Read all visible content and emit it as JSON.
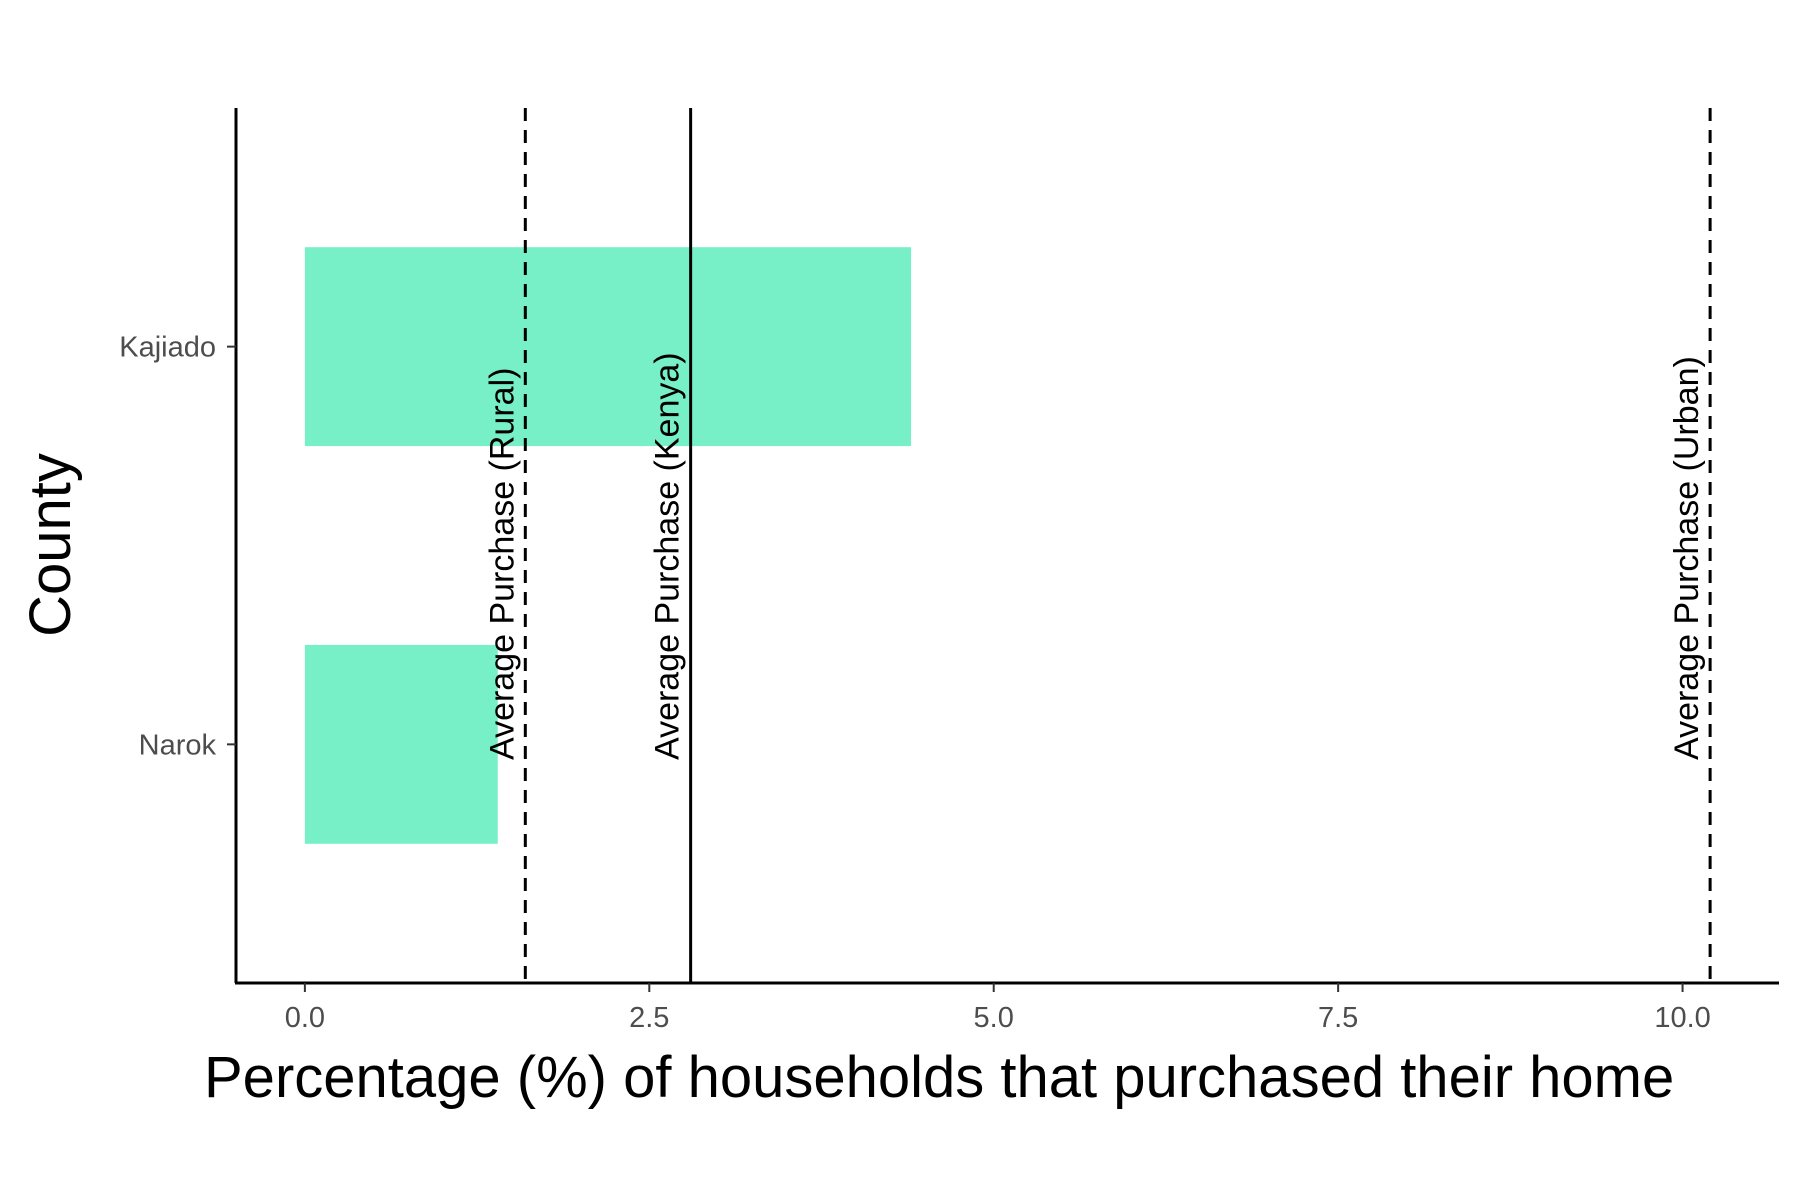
{
  "chart_data": {
    "type": "bar",
    "orientation": "horizontal",
    "categories": [
      "Kajiado",
      "Narok"
    ],
    "values": [
      4.4,
      1.4
    ],
    "xlabel": "Percentage (%) of households that purchased their home",
    "ylabel": "County",
    "xlim": [
      -0.5,
      10.7
    ],
    "xticks": [
      "0.0",
      "2.5",
      "5.0",
      "7.5",
      "10.0"
    ],
    "bar_color": "#77efc7",
    "grid": false,
    "reference_lines": [
      {
        "label": "Average Purchase (Rural)",
        "value": 1.6,
        "style": "dashed"
      },
      {
        "label": "Average Purchase (Kenya)",
        "value": 2.8,
        "style": "solid"
      },
      {
        "label": "Average Purchase (Urban)",
        "value": 10.2,
        "style": "dashed"
      }
    ]
  }
}
